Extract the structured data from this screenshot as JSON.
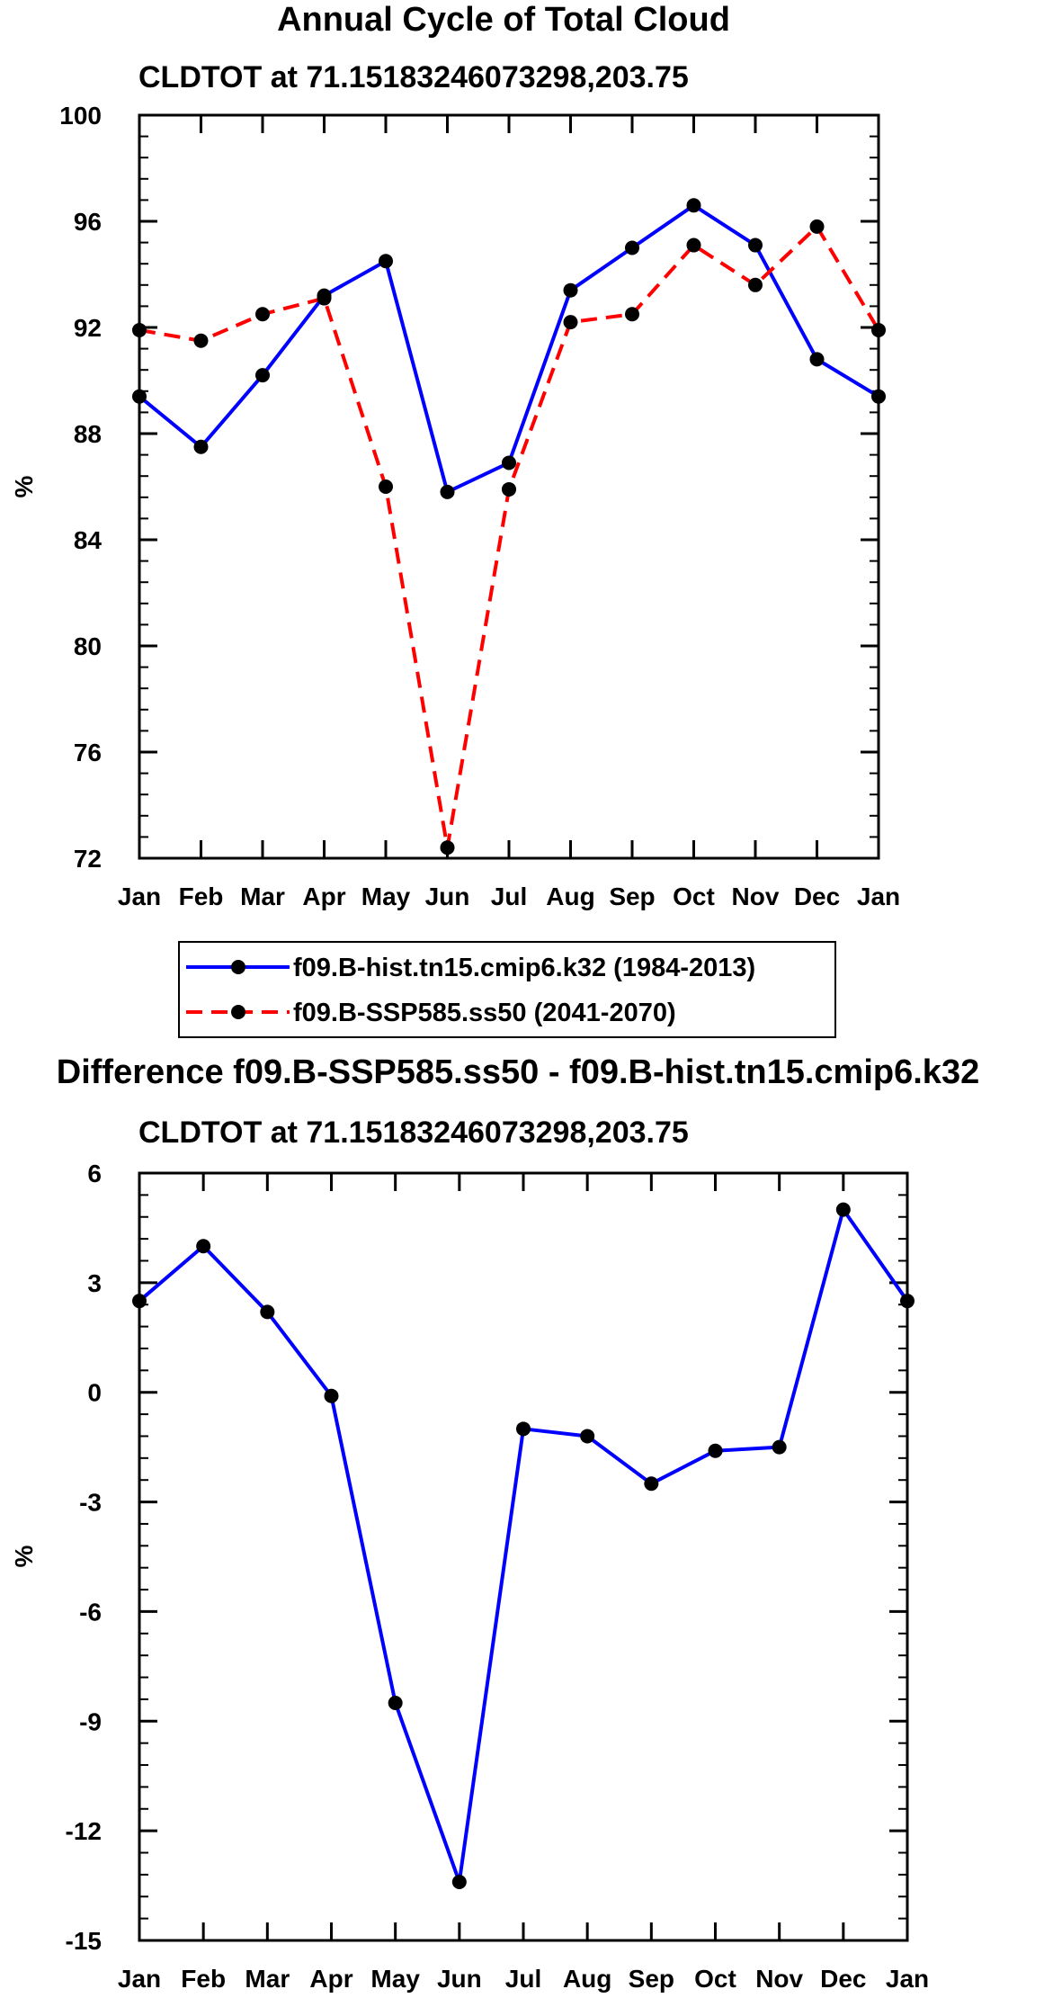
{
  "chart_data": [
    {
      "type": "line",
      "title": "Annual Cycle of Total Cloud",
      "subtitle": "CLDTOT at 71.15183246073298,203.75",
      "ylabel": "%",
      "xlabel": "",
      "ylim": [
        72,
        100
      ],
      "yticks": [
        "100",
        "96",
        "92",
        "88",
        "84",
        "80",
        "76",
        "72"
      ],
      "categories": [
        "Jan",
        "Feb",
        "Mar",
        "Apr",
        "May",
        "Jun",
        "Jul",
        "Aug",
        "Sep",
        "Oct",
        "Nov",
        "Dec",
        "Jan"
      ],
      "grid": false,
      "legend_position": "below",
      "series": [
        {
          "name": "f09.B-hist.tn15.cmip6.k32 (1984-2013)",
          "color": "#0000ff",
          "dash": "solid",
          "values": [
            89.4,
            87.5,
            90.2,
            93.2,
            94.5,
            85.8,
            86.9,
            93.4,
            95.0,
            96.6,
            95.1,
            90.8,
            89.4
          ]
        },
        {
          "name": "f09.B-SSP585.ss50 (2041-2070)",
          "color": "#ff0000",
          "dash": "dashed",
          "values": [
            91.9,
            91.5,
            92.5,
            93.1,
            86.0,
            72.4,
            85.9,
            92.2,
            92.5,
            95.1,
            93.6,
            95.8,
            91.9
          ]
        }
      ]
    },
    {
      "type": "line",
      "title": "Difference f09.B-SSP585.ss50 - f09.B-hist.tn15.cmip6.k32",
      "subtitle": "CLDTOT at 71.15183246073298,203.75",
      "ylabel": "%",
      "xlabel": "",
      "ylim": [
        -15,
        6
      ],
      "yticks": [
        "6",
        "3",
        "0",
        "-3",
        "-6",
        "-9",
        "-12",
        "-15"
      ],
      "categories": [
        "Jan",
        "Feb",
        "Mar",
        "Apr",
        "May",
        "Jun",
        "Jul",
        "Aug",
        "Sep",
        "Oct",
        "Nov",
        "Dec",
        "Jan"
      ],
      "grid": false,
      "series": [
        {
          "color": "#0000ff",
          "dash": "solid",
          "values": [
            2.5,
            4.0,
            2.2,
            -0.1,
            -8.5,
            -13.4,
            -1.0,
            -1.2,
            -2.5,
            -1.6,
            -1.5,
            5.0,
            2.5
          ]
        }
      ]
    }
  ]
}
